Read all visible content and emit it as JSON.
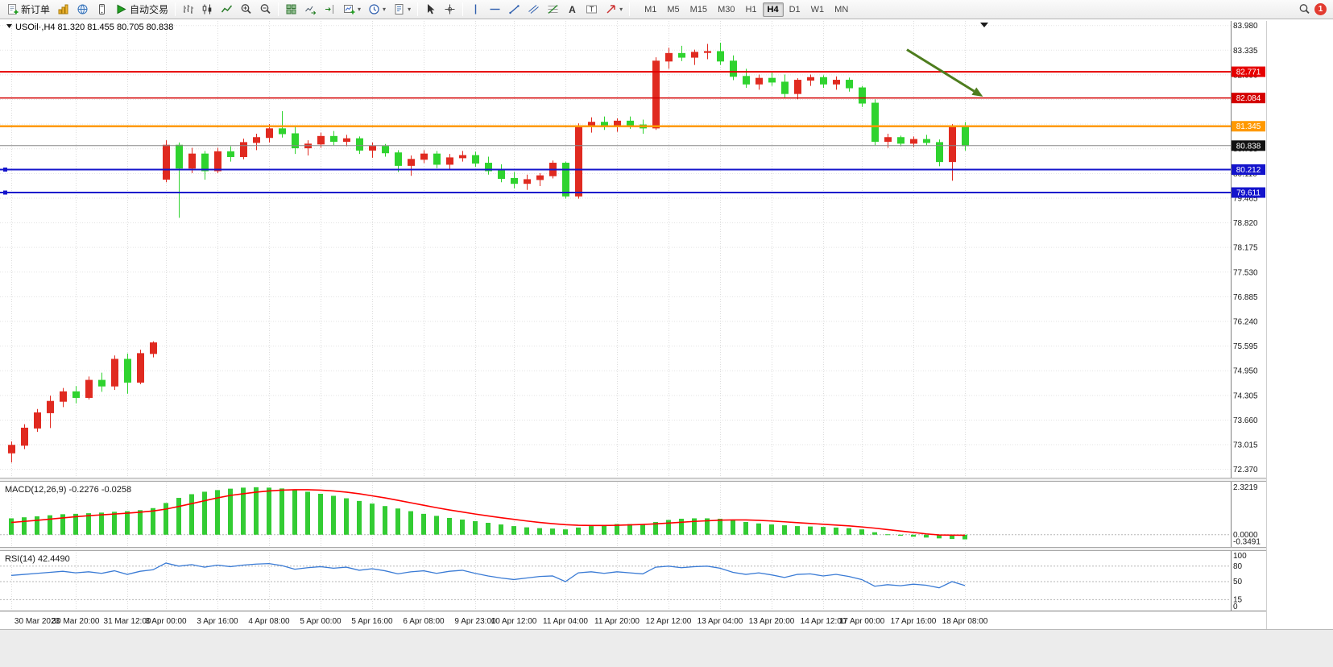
{
  "toolbar": {
    "new_order_label": "新订单",
    "autotrade_label": "自动交易",
    "timeframes": [
      "M1",
      "M5",
      "M15",
      "M30",
      "H1",
      "H4",
      "D1",
      "W1",
      "MN"
    ],
    "active_timeframe": "H4",
    "notification_count": "1"
  },
  "chart": {
    "header": "USOil·,H4  81.320 81.455 80.705 80.838",
    "symbol": "USOil",
    "period": "H4",
    "ohlc": {
      "open": "81.320",
      "high": "81.455",
      "low": "80.705",
      "close": "80.838"
    }
  },
  "chart_data": {
    "type": "candlestick",
    "symbol": "USOil",
    "period": "H4",
    "up_color": "#e02a20",
    "down_color": "#2fd32f",
    "candles": [
      [
        72.8,
        73.1,
        72.55,
        73.0
      ],
      [
        73.0,
        73.55,
        72.9,
        73.45
      ],
      [
        73.45,
        73.95,
        73.35,
        73.85
      ],
      [
        73.85,
        74.3,
        73.45,
        74.15
      ],
      [
        74.15,
        74.5,
        74.0,
        74.4
      ],
      [
        74.4,
        74.55,
        74.1,
        74.25
      ],
      [
        74.25,
        74.8,
        74.2,
        74.7
      ],
      [
        74.7,
        74.9,
        74.4,
        74.55
      ],
      [
        74.55,
        75.35,
        74.45,
        75.25
      ],
      [
        75.25,
        75.4,
        74.35,
        74.65
      ],
      [
        74.65,
        75.5,
        74.6,
        75.4
      ],
      [
        75.4,
        75.72,
        75.3,
        75.68
      ],
      [
        79.96,
        80.98,
        79.88,
        80.85
      ],
      [
        80.85,
        80.92,
        78.95,
        80.25
      ],
      [
        80.25,
        80.78,
        80.12,
        80.62
      ],
      [
        80.62,
        80.7,
        79.95,
        80.18
      ],
      [
        80.18,
        80.78,
        80.12,
        80.68
      ],
      [
        80.68,
        80.82,
        80.42,
        80.55
      ],
      [
        80.55,
        81.02,
        80.48,
        80.92
      ],
      [
        80.92,
        81.15,
        80.72,
        81.05
      ],
      [
        81.05,
        81.4,
        80.92,
        81.28
      ],
      [
        81.28,
        81.74,
        81.05,
        81.15
      ],
      [
        81.15,
        81.32,
        80.62,
        80.78
      ],
      [
        80.78,
        80.98,
        80.58,
        80.88
      ],
      [
        80.88,
        81.18,
        80.78,
        81.08
      ],
      [
        81.08,
        81.22,
        80.85,
        80.95
      ],
      [
        80.95,
        81.12,
        80.82,
        81.02
      ],
      [
        81.02,
        81.08,
        80.62,
        80.72
      ],
      [
        80.72,
        80.92,
        80.52,
        80.82
      ],
      [
        80.82,
        80.88,
        80.55,
        80.65
      ],
      [
        80.65,
        80.72,
        80.15,
        80.32
      ],
      [
        80.32,
        80.58,
        80.05,
        80.48
      ],
      [
        80.48,
        80.72,
        80.38,
        80.62
      ],
      [
        80.62,
        80.7,
        80.25,
        80.35
      ],
      [
        80.35,
        80.62,
        80.22,
        80.52
      ],
      [
        80.52,
        80.7,
        80.42,
        80.58
      ],
      [
        80.58,
        80.68,
        80.28,
        80.38
      ],
      [
        80.38,
        80.55,
        80.08,
        80.18
      ],
      [
        80.18,
        80.35,
        79.88,
        79.98
      ],
      [
        79.98,
        80.15,
        79.72,
        79.85
      ],
      [
        79.85,
        80.08,
        79.68,
        79.95
      ],
      [
        79.95,
        80.12,
        79.78,
        80.05
      ],
      [
        80.05,
        80.45,
        79.98,
        80.38
      ],
      [
        80.38,
        80.42,
        79.45,
        79.52
      ],
      [
        79.52,
        81.42,
        79.45,
        81.35
      ],
      [
        81.35,
        81.58,
        81.18,
        81.45
      ],
      [
        81.45,
        81.6,
        81.25,
        81.35
      ],
      [
        81.35,
        81.55,
        81.2,
        81.48
      ],
      [
        81.48,
        81.6,
        81.28,
        81.38
      ],
      [
        81.38,
        81.52,
        81.15,
        81.3
      ],
      [
        81.3,
        83.15,
        81.25,
        83.05
      ],
      [
        83.05,
        83.4,
        82.85,
        83.25
      ],
      [
        83.25,
        83.45,
        83.05,
        83.15
      ],
      [
        83.15,
        83.35,
        82.95,
        83.28
      ],
      [
        83.28,
        83.5,
        83.1,
        83.3
      ],
      [
        83.3,
        83.53,
        82.95,
        83.05
      ],
      [
        83.05,
        83.2,
        82.55,
        82.65
      ],
      [
        82.65,
        82.85,
        82.35,
        82.45
      ],
      [
        82.45,
        82.7,
        82.3,
        82.6
      ],
      [
        82.6,
        82.75,
        82.4,
        82.5
      ],
      [
        82.5,
        82.7,
        82.1,
        82.2
      ],
      [
        82.2,
        82.6,
        82.05,
        82.55
      ],
      [
        82.55,
        82.7,
        82.4,
        82.62
      ],
      [
        82.62,
        82.68,
        82.35,
        82.45
      ],
      [
        82.45,
        82.65,
        82.3,
        82.55
      ],
      [
        82.55,
        82.62,
        82.25,
        82.35
      ],
      [
        82.35,
        82.4,
        81.85,
        81.95
      ],
      [
        81.95,
        82.05,
        80.85,
        80.95
      ],
      [
        80.95,
        81.15,
        80.78,
        81.05
      ],
      [
        81.05,
        81.1,
        80.82,
        80.9
      ],
      [
        80.9,
        81.08,
        80.8,
        81.0
      ],
      [
        81.0,
        81.12,
        80.85,
        80.92
      ],
      [
        80.92,
        81.0,
        80.3,
        80.42
      ],
      [
        80.42,
        81.4,
        79.92,
        81.32
      ],
      [
        81.32,
        81.455,
        80.705,
        80.838
      ]
    ],
    "time_labels": [
      {
        "text": "30 Mar 2023",
        "bar": 0
      },
      {
        "text": "30 Mar 20:00",
        "bar": 5
      },
      {
        "text": "31 Mar 12:00",
        "bar": 9
      },
      {
        "text": "3 Apr 00:00",
        "bar": 12
      },
      {
        "text": "3 Apr 16:00",
        "bar": 16
      },
      {
        "text": "4 Apr 08:00",
        "bar": 20
      },
      {
        "text": "5 Apr 00:00",
        "bar": 24
      },
      {
        "text": "5 Apr 16:00",
        "bar": 28
      },
      {
        "text": "6 Apr 08:00",
        "bar": 32
      },
      {
        "text": "9 Apr 23:00",
        "bar": 36
      },
      {
        "text": "10 Apr 12:00",
        "bar": 39
      },
      {
        "text": "11 Apr 04:00",
        "bar": 43
      },
      {
        "text": "11 Apr 20:00",
        "bar": 47
      },
      {
        "text": "12 Apr 12:00",
        "bar": 51
      },
      {
        "text": "13 Apr 04:00",
        "bar": 55
      },
      {
        "text": "13 Apr 20:00",
        "bar": 59
      },
      {
        "text": "14 Apr 12:00",
        "bar": 63
      },
      {
        "text": "17 Apr 00:00",
        "bar": 66
      },
      {
        "text": "17 Apr 16:00",
        "bar": 70
      },
      {
        "text": "18 Apr 08:00",
        "bar": 74
      }
    ],
    "price_scale": {
      "labels": [
        "83.980",
        "83.335",
        "82.690",
        "82.045",
        "81.400",
        "80.755",
        "80.110",
        "79.465",
        "78.820",
        "78.175",
        "77.530",
        "76.885",
        "76.240",
        "75.595",
        "74.950",
        "74.305",
        "73.660",
        "73.015",
        "72.370"
      ]
    },
    "hlines": [
      {
        "value": 82.771,
        "label": "82.771",
        "color": "#e60000",
        "width": 2,
        "handles": false
      },
      {
        "value": 82.084,
        "label": "82.084",
        "color": "#d40000",
        "width": 1.5,
        "handles": false
      },
      {
        "value": 81.345,
        "label": "81.345",
        "color": "#ff9900",
        "width": 2.5,
        "handles": false
      },
      {
        "value": 80.212,
        "label": "80.212",
        "color": "#1414cc",
        "width": 2,
        "handles": true
      },
      {
        "value": 79.611,
        "label": "79.611",
        "color": "#1414cc",
        "width": 2,
        "handles": true
      }
    ],
    "current_price": {
      "value": 80.838,
      "label": "80.838",
      "color": "#111111"
    },
    "arrow": {
      "from_bar": 69.5,
      "from_price": 83.35,
      "to_bar": 75.4,
      "to_price": 82.12,
      "color": "#4e7d1e"
    },
    "macd": {
      "label": "MACD(12,26,9) -0.2276 -0.0258",
      "hist_color": "#33cc33",
      "signal_color": "#ff0000",
      "range": [
        -0.6,
        2.55
      ],
      "axis_labels": [
        {
          "value": 2.3219,
          "text": "2.3219"
        },
        {
          "value": 0,
          "text": "0.0000"
        },
        {
          "value": -0.3491,
          "text": "-0.3491"
        }
      ],
      "histogram": [
        0.8,
        0.85,
        0.9,
        0.95,
        1.0,
        1.02,
        1.05,
        1.08,
        1.12,
        1.15,
        1.2,
        1.3,
        1.55,
        1.8,
        1.98,
        2.1,
        2.18,
        2.25,
        2.3,
        2.32,
        2.3,
        2.26,
        2.18,
        2.1,
        2.0,
        1.9,
        1.78,
        1.65,
        1.52,
        1.4,
        1.28,
        1.15,
        1.02,
        0.92,
        0.82,
        0.74,
        0.66,
        0.58,
        0.5,
        0.42,
        0.36,
        0.32,
        0.3,
        0.26,
        0.35,
        0.42,
        0.48,
        0.52,
        0.52,
        0.5,
        0.62,
        0.72,
        0.78,
        0.8,
        0.8,
        0.78,
        0.7,
        0.62,
        0.55,
        0.5,
        0.46,
        0.42,
        0.4,
        0.38,
        0.35,
        0.32,
        0.26,
        0.12,
        0.02,
        -0.05,
        -0.1,
        -0.14,
        -0.18,
        -0.21,
        -0.2276
      ],
      "signal": [
        0.6,
        0.65,
        0.7,
        0.76,
        0.82,
        0.88,
        0.93,
        0.97,
        1.01,
        1.05,
        1.1,
        1.16,
        1.25,
        1.38,
        1.52,
        1.66,
        1.8,
        1.92,
        2.0,
        2.08,
        2.14,
        2.18,
        2.2,
        2.2,
        2.18,
        2.14,
        2.08,
        2.0,
        1.9,
        1.8,
        1.68,
        1.56,
        1.44,
        1.32,
        1.21,
        1.11,
        1.01,
        0.92,
        0.83,
        0.75,
        0.67,
        0.6,
        0.54,
        0.49,
        0.46,
        0.45,
        0.45,
        0.46,
        0.48,
        0.5,
        0.53,
        0.57,
        0.61,
        0.65,
        0.68,
        0.71,
        0.72,
        0.72,
        0.7,
        0.67,
        0.63,
        0.59,
        0.55,
        0.51,
        0.47,
        0.43,
        0.38,
        0.32,
        0.25,
        0.18,
        0.11,
        0.04,
        -0.01,
        -0.02,
        -0.0258
      ]
    },
    "rsi": {
      "label": "RSI(14) 42.4490",
      "color": "#3a7bd5",
      "range": [
        0,
        100
      ],
      "levels": [
        80,
        50,
        15
      ],
      "axis_labels": [
        {
          "value": 100,
          "text": "100"
        },
        {
          "value": 80,
          "text": "80"
        },
        {
          "value": 50,
          "text": "50"
        },
        {
          "value": 15,
          "text": "15"
        },
        {
          "value": 0,
          "text": "0"
        }
      ],
      "values": [
        62,
        64,
        66,
        68,
        70,
        67,
        69,
        66,
        71,
        64,
        70,
        73,
        86,
        80,
        83,
        78,
        82,
        79,
        82,
        84,
        85,
        81,
        74,
        77,
        79,
        76,
        78,
        72,
        75,
        71,
        65,
        69,
        71,
        66,
        70,
        72,
        66,
        61,
        57,
        54,
        57,
        60,
        61,
        50,
        67,
        69,
        66,
        69,
        67,
        65,
        78,
        80,
        77,
        79,
        80,
        76,
        68,
        64,
        67,
        63,
        58,
        64,
        65,
        61,
        64,
        60,
        54,
        41,
        44,
        42,
        45,
        43,
        38,
        50,
        42.449
      ]
    }
  }
}
